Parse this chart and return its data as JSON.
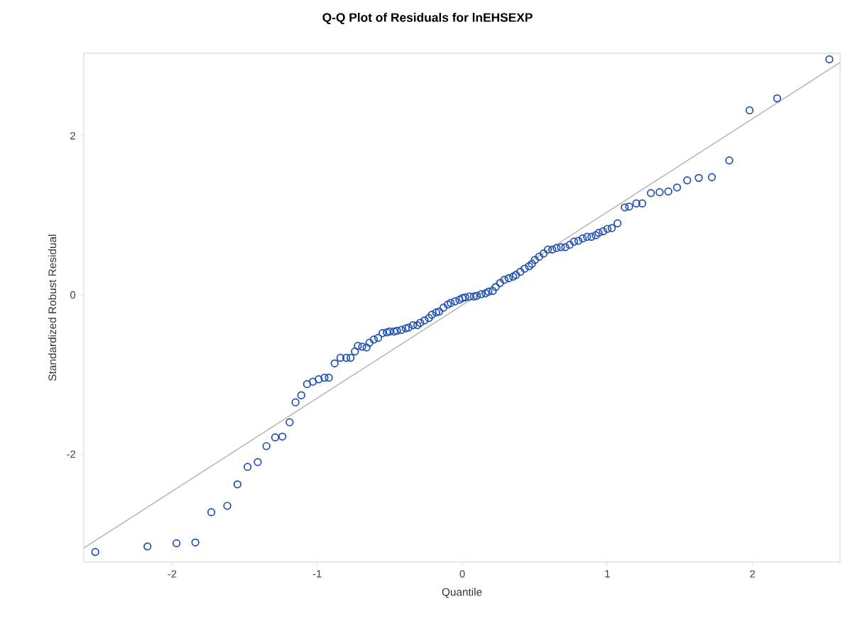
{
  "chart_data": {
    "type": "scatter",
    "title": "Q-Q Plot of Residuals for lnEHSEXP",
    "xlabel": "Quantile",
    "ylabel": "Standardized Robust Residual",
    "xlim": [
      -2.609,
      2.604
    ],
    "ylim": [
      -3.357,
      3.036
    ],
    "xticks": [
      -2,
      -1,
      0,
      1,
      2
    ],
    "yticks": [
      -2,
      0,
      2
    ],
    "marker": "circle",
    "series": [
      {
        "color": "#1f4fb0",
        "x": [
          -2.53,
          -2.17,
          -1.97,
          -1.84,
          -1.73,
          -1.62,
          -1.55,
          -1.48,
          -1.41,
          -1.35,
          -1.29,
          -1.24,
          -1.19,
          -1.15,
          -1.11,
          -1.07,
          -1.03,
          -0.99,
          -0.95,
          -0.92,
          -0.88,
          -0.84,
          -0.8,
          -0.77,
          -0.74,
          -0.72,
          -0.69,
          -0.66,
          -0.64,
          -0.61,
          -0.58,
          -0.55,
          -0.52,
          -0.5,
          -0.47,
          -0.45,
          -0.42,
          -0.39,
          -0.37,
          -0.34,
          -0.31,
          -0.29,
          -0.26,
          -0.23,
          -0.21,
          -0.18,
          -0.16,
          -0.13,
          -0.1,
          -0.08,
          -0.05,
          -0.02,
          0.0,
          0.02,
          0.05,
          0.08,
          0.1,
          0.13,
          0.16,
          0.18,
          0.21,
          0.23,
          0.26,
          0.29,
          0.32,
          0.35,
          0.37,
          0.4,
          0.43,
          0.46,
          0.48,
          0.5,
          0.53,
          0.56,
          0.59,
          0.62,
          0.65,
          0.68,
          0.71,
          0.74,
          0.77,
          0.8,
          0.83,
          0.86,
          0.89,
          0.92,
          0.94,
          0.97,
          1.0,
          1.03,
          1.07,
          1.12,
          1.15,
          1.2,
          1.24,
          1.3,
          1.36,
          1.42,
          1.48,
          1.55,
          1.63,
          1.72,
          1.84,
          1.98,
          2.17,
          2.53
        ],
        "values": [
          -3.23,
          -3.16,
          -3.12,
          -3.11,
          -2.73,
          -2.65,
          -2.38,
          -2.16,
          -2.1,
          -1.9,
          -1.79,
          -1.78,
          -1.6,
          -1.35,
          -1.26,
          -1.12,
          -1.09,
          -1.06,
          -1.04,
          -1.04,
          -0.86,
          -0.79,
          -0.79,
          -0.79,
          -0.71,
          -0.64,
          -0.65,
          -0.66,
          -0.6,
          -0.56,
          -0.54,
          -0.48,
          -0.47,
          -0.46,
          -0.46,
          -0.45,
          -0.44,
          -0.42,
          -0.41,
          -0.38,
          -0.38,
          -0.35,
          -0.32,
          -0.29,
          -0.25,
          -0.22,
          -0.21,
          -0.16,
          -0.12,
          -0.1,
          -0.08,
          -0.06,
          -0.04,
          -0.03,
          -0.02,
          -0.02,
          -0.01,
          0.01,
          0.02,
          0.04,
          0.05,
          0.1,
          0.15,
          0.19,
          0.21,
          0.23,
          0.25,
          0.29,
          0.33,
          0.36,
          0.39,
          0.44,
          0.48,
          0.52,
          0.57,
          0.57,
          0.59,
          0.6,
          0.6,
          0.63,
          0.67,
          0.68,
          0.71,
          0.73,
          0.73,
          0.75,
          0.78,
          0.8,
          0.83,
          0.84,
          0.9,
          1.1,
          1.11,
          1.15,
          1.15,
          1.28,
          1.29,
          1.3,
          1.35,
          1.44,
          1.47,
          1.48,
          1.69,
          2.32,
          2.47,
          2.96
        ]
      },
      {
        "type": "line",
        "color": "#b4b4b4",
        "marker": "none",
        "x": [
          -2.609,
          2.604
        ],
        "values": [
          -3.18,
          2.92
        ]
      }
    ]
  }
}
